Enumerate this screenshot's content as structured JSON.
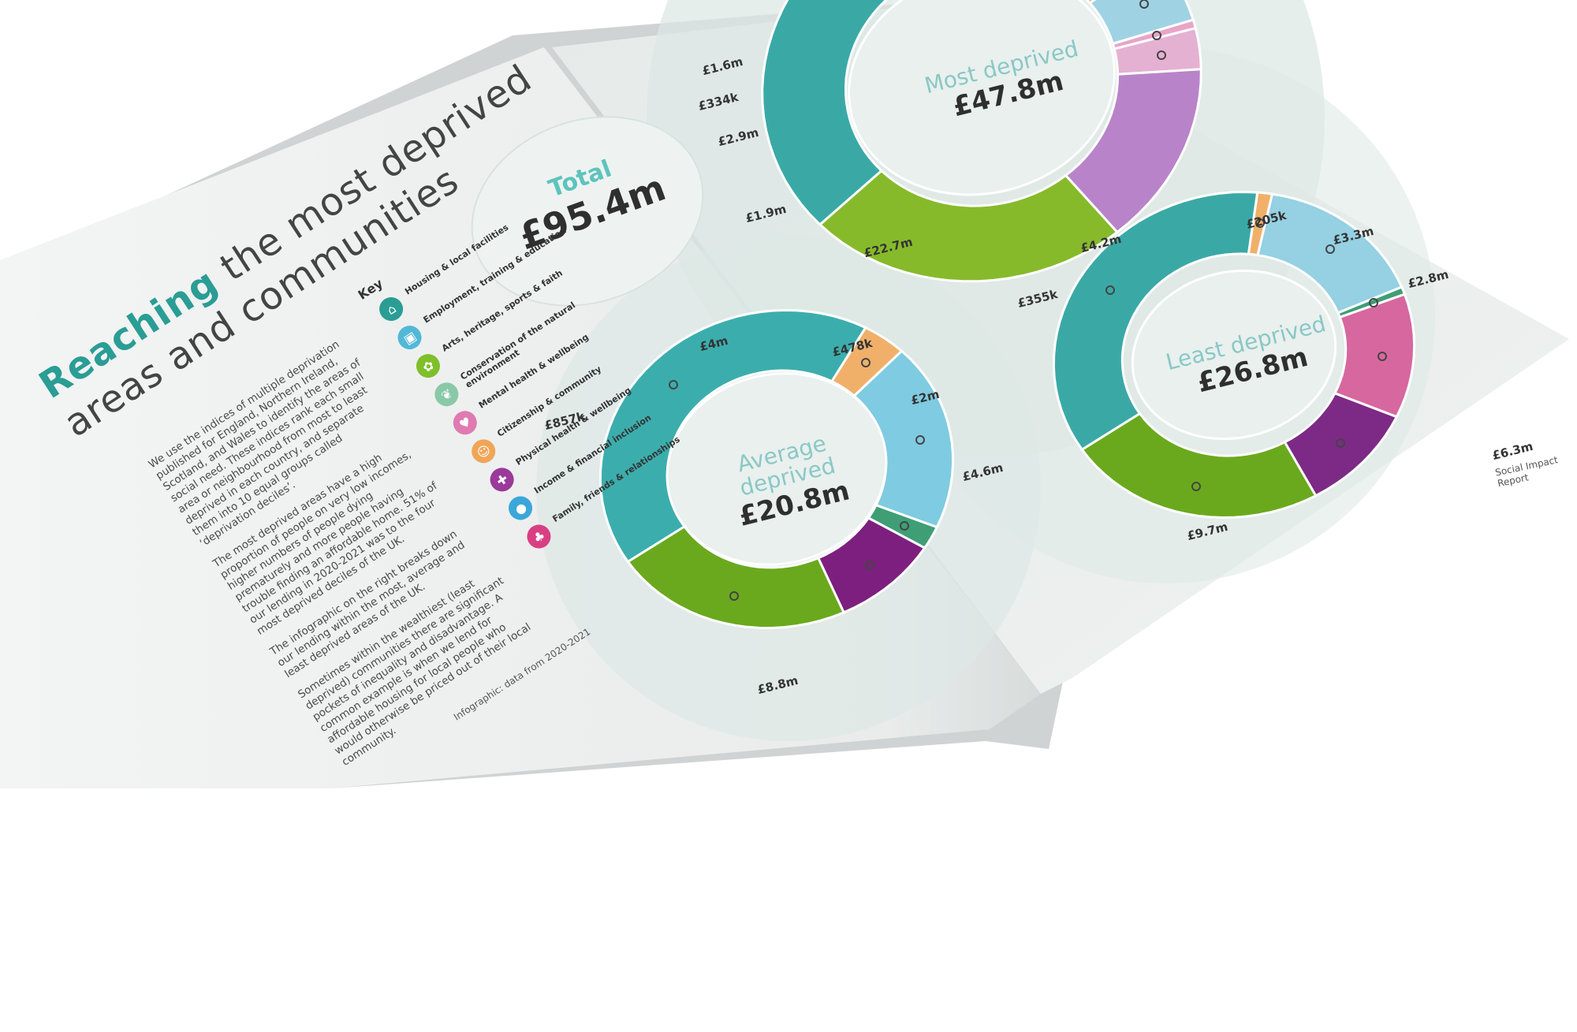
{
  "left_page": {
    "title_accent": "Reaching",
    "title_line1_rest": " the most deprived",
    "title_line2": "areas and communities",
    "paragraph1": "We use the indices of multiple deprivation published for England, Northern Ireland, Scotland, and Wales to identify the areas of social need. These indices rank each small area or neighbourhood from most to least deprived in each country, and separate them into 10 equal groups called ‘deprivation deciles’.",
    "paragraph2": "The most deprived areas have a high proportion of people on very low incomes, higher numbers of people dying prematurely and more people having trouble finding an affordable home. 51% of our lending in 2020-2021 was to the four most deprived deciles of the UK.",
    "paragraph3": "The infographic on the right breaks down our lending within the most, average and least deprived areas of the UK.",
    "paragraph4": "Sometimes within the wealthiest (least deprived) communities there are significant pockets of inequality and disadvantage. A common example is when we lend for affordable housing for local people who would otherwise be priced out of their local community.",
    "footnote": "Infographic: data from 2020-2021",
    "key_heading": "Key",
    "key_items": [
      {
        "label": "Housing & local facilities",
        "icon": "house-icon",
        "color": "#2a9d95"
      },
      {
        "label": "Employment, training & education",
        "icon": "briefcase-icon",
        "color": "#52b8d6"
      },
      {
        "label": "Arts, heritage, sports & faith",
        "icon": "palette-icon",
        "color": "#7fbf2a"
      },
      {
        "label": "Conservation of the natural environment",
        "icon": "leaf-icon",
        "color": "#89c9a8"
      },
      {
        "label": "Mental health & wellbeing",
        "icon": "heart-icon",
        "color": "#e07ab0"
      },
      {
        "label": "Citizenship & community",
        "icon": "people-icon",
        "color": "#f0a558"
      },
      {
        "label": "Physical health & wellbeing",
        "icon": "runner-icon",
        "color": "#9a3a9a"
      },
      {
        "label": "Income & financial inclusion",
        "icon": "coin-icon",
        "color": "#3ba7d8"
      },
      {
        "label": "Family, friends & relationships",
        "icon": "family-icon",
        "color": "#d93f83"
      }
    ]
  },
  "right_page": {
    "report_tag": "Social Impact Report",
    "total": {
      "label": "Total",
      "amount": "£95.4m"
    }
  },
  "chart_data": [
    {
      "type": "pie",
      "title": "Most deprived",
      "total": "£47.8m",
      "slices": [
        {
          "label": "£22.7m",
          "value": 22.7,
          "color": "#3aa9a6"
        },
        {
          "label": "£1.9m",
          "value": 1.9,
          "color": "#f0b36b"
        },
        {
          "label": "£2.9m",
          "value": 2.9,
          "color": "#9fd3e3"
        },
        {
          "label": "£334k",
          "value": 0.334,
          "color": "#e9a4c9"
        },
        {
          "label": "£1.6m",
          "value": 1.6,
          "color": "#e4b1d2"
        },
        {
          "label": "",
          "value": 7.0,
          "color": "#b983c9"
        },
        {
          "label": "",
          "value": 11.366,
          "color": "#86ba2b"
        }
      ]
    },
    {
      "type": "pie",
      "title": "Average deprived",
      "total": "£20.8m",
      "slices": [
        {
          "label": "£8.8m",
          "value": 8.8,
          "color": "#3cadad"
        },
        {
          "label": "£857k",
          "value": 0.857,
          "color": "#f0b06a"
        },
        {
          "label": "£4m",
          "value": 4.0,
          "color": "#7fcbe1"
        },
        {
          "label": "£478k",
          "value": 0.478,
          "color": "#3f9e76"
        },
        {
          "label": "£2m",
          "value": 2.0,
          "color": "#7d1f7e"
        },
        {
          "label": "£4.6m",
          "value": 4.6,
          "color": "#6aa91d"
        }
      ]
    },
    {
      "type": "pie",
      "title": "Least deprived",
      "total": "£26.8m",
      "slices": [
        {
          "label": "£9.7m",
          "value": 9.7,
          "color": "#3aa9a6"
        },
        {
          "label": "£355k",
          "value": 0.355,
          "color": "#f0b06a"
        },
        {
          "label": "£4.2m",
          "value": 4.2,
          "color": "#95d0e3"
        },
        {
          "label": "£205k",
          "value": 0.205,
          "color": "#3f9e76"
        },
        {
          "label": "£3.3m",
          "value": 3.3,
          "color": "#d7679f"
        },
        {
          "label": "£2.8m",
          "value": 2.8,
          "color": "#7d2a86"
        },
        {
          "label": "£6.3m",
          "value": 6.3,
          "color": "#6aa91d"
        }
      ]
    }
  ]
}
